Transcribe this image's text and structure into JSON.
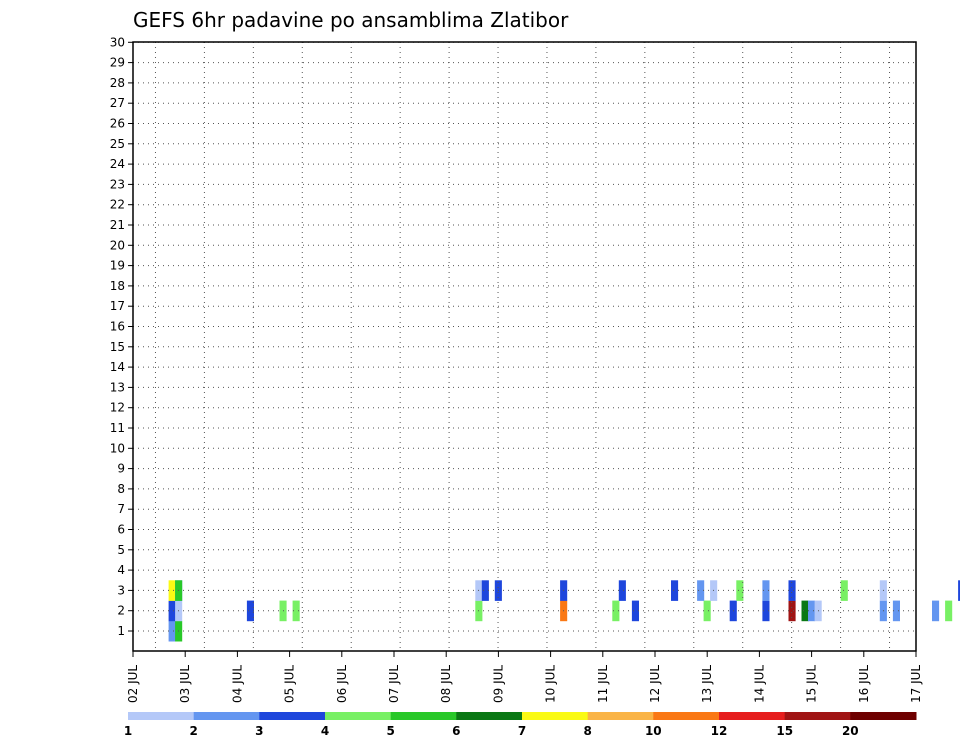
{
  "chart_data": {
    "type": "heatmap",
    "title": "GEFS 6hr padavine po ansamblima Zlatibor",
    "ylabel": "",
    "xlabel": "",
    "y_ticks": [
      "1",
      "2",
      "3",
      "4",
      "5",
      "6",
      "7",
      "8",
      "9",
      "10",
      "11",
      "12",
      "13",
      "14",
      "15",
      "16",
      "17",
      "18",
      "19",
      "20",
      "21",
      "22",
      "23",
      "24",
      "25",
      "26",
      "27",
      "28",
      "29",
      "30"
    ],
    "x_ticks": [
      "02 JUL",
      "03 JUL",
      "04 JUL",
      "05 JUL",
      "06 JUL",
      "07 JUL",
      "08 JUL",
      "09 JUL",
      "10 JUL",
      "11 JUL",
      "12 JUL",
      "13 JUL",
      "14 JUL",
      "15 JUL",
      "16 JUL",
      "17 JUL"
    ],
    "time_step_hours": 6,
    "members": 30,
    "colorbar": {
      "labels": [
        "1",
        "2",
        "3",
        "4",
        "5",
        "6",
        "7",
        "8",
        "10",
        "12",
        "15",
        "20"
      ],
      "colors": [
        "#b4c8f8",
        "#6496f0",
        "#1e46dc",
        "#78f064",
        "#28c828",
        "#0a7814",
        "#fafa14",
        "#fab446",
        "#fa7814",
        "#e61e1e",
        "#a01414",
        "#6e0000"
      ]
    },
    "cells": [
      [
        "m1 s1 1",
        "m1 s3 1",
        "m1 s3 1"
      ],
      [
        1,
        3,
        1
      ],
      [
        1,
        4,
        4
      ],
      [
        2,
        3,
        2
      ],
      [
        2,
        4,
        0
      ],
      [
        2,
        15,
        2
      ],
      [
        2,
        20,
        3
      ],
      [
        2,
        22,
        3
      ],
      [
        2,
        50,
        3
      ],
      [
        2,
        63,
        8
      ],
      [
        2,
        71,
        3
      ],
      [
        2,
        74,
        2
      ],
      [
        2,
        85,
        3
      ],
      [
        2,
        89,
        2
      ],
      [
        2,
        94,
        2
      ],
      [
        2,
        98,
        10
      ],
      [
        2,
        100,
        5
      ],
      [
        2,
        101,
        1
      ],
      [
        2,
        102,
        0
      ],
      [
        2,
        112,
        1
      ],
      [
        2,
        114,
        1
      ],
      [
        2,
        120,
        1
      ],
      [
        2,
        122,
        3
      ],
      [
        2,
        131,
        7
      ],
      [
        2,
        133,
        0
      ],
      [
        3,
        3,
        6
      ],
      [
        3,
        4,
        1
      ],
      [
        3,
        4,
        4
      ],
      [
        3,
        50,
        0
      ],
      [
        3,
        51,
        2
      ],
      [
        3,
        53,
        2
      ],
      [
        3,
        63,
        2
      ],
      [
        3,
        72,
        2
      ],
      [
        3,
        80,
        2
      ],
      [
        3,
        84,
        1
      ],
      [
        3,
        86,
        0
      ],
      [
        3,
        90,
        3
      ],
      [
        3,
        94,
        1
      ],
      [
        3,
        98,
        2
      ],
      [
        3,
        106,
        3
      ],
      [
        3,
        112,
        0
      ],
      [
        3,
        124,
        2
      ],
      [
        3,
        129,
        0
      ],
      [
        3,
        132,
        2
      ]
    ]
  }
}
